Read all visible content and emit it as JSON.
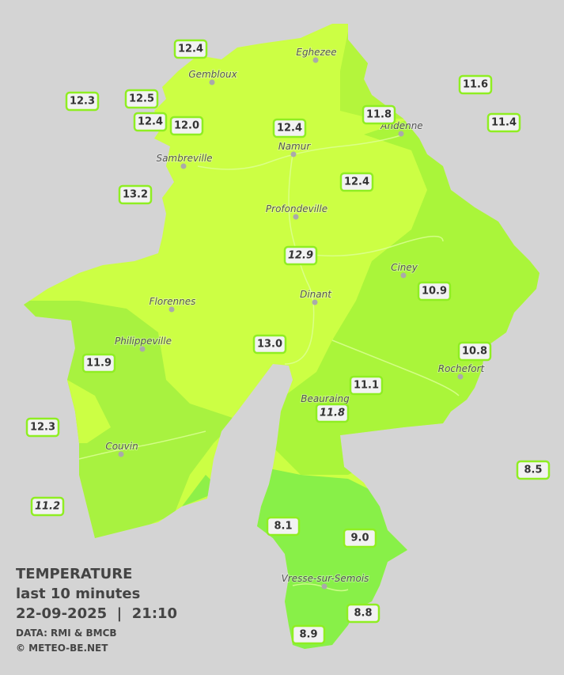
{
  "cities": [
    "Eghezee",
    "Gembloux",
    "Andenne",
    "Namur",
    "Sambreville",
    "Profondeville",
    "Ciney",
    "Dinant",
    "Florennes",
    "Philippeville",
    "Rochefort",
    "Beauraing",
    "Couvin",
    "Vresse-sur-Semois"
  ],
  "stations": [
    "12.4",
    "12.3",
    "12.5",
    "12.4",
    "12.0",
    "12.4",
    "11.8",
    "11.6",
    "11.4",
    "13.2",
    "12.4",
    "12.9",
    "10.9",
    "13.0",
    "11.9",
    "10.8",
    "11.1",
    "11.8",
    "12.3",
    "8.5",
    "11.2",
    "8.1",
    "9.0",
    "8.8",
    "8.9"
  ],
  "legend": {
    "title": "TEMPERATURE",
    "period": "last 10 minutes",
    "datetime": "22-09-2025  |  21:10",
    "source": "DATA: RMI & BMCB",
    "copyright": "© METEO-BE.NET"
  }
}
